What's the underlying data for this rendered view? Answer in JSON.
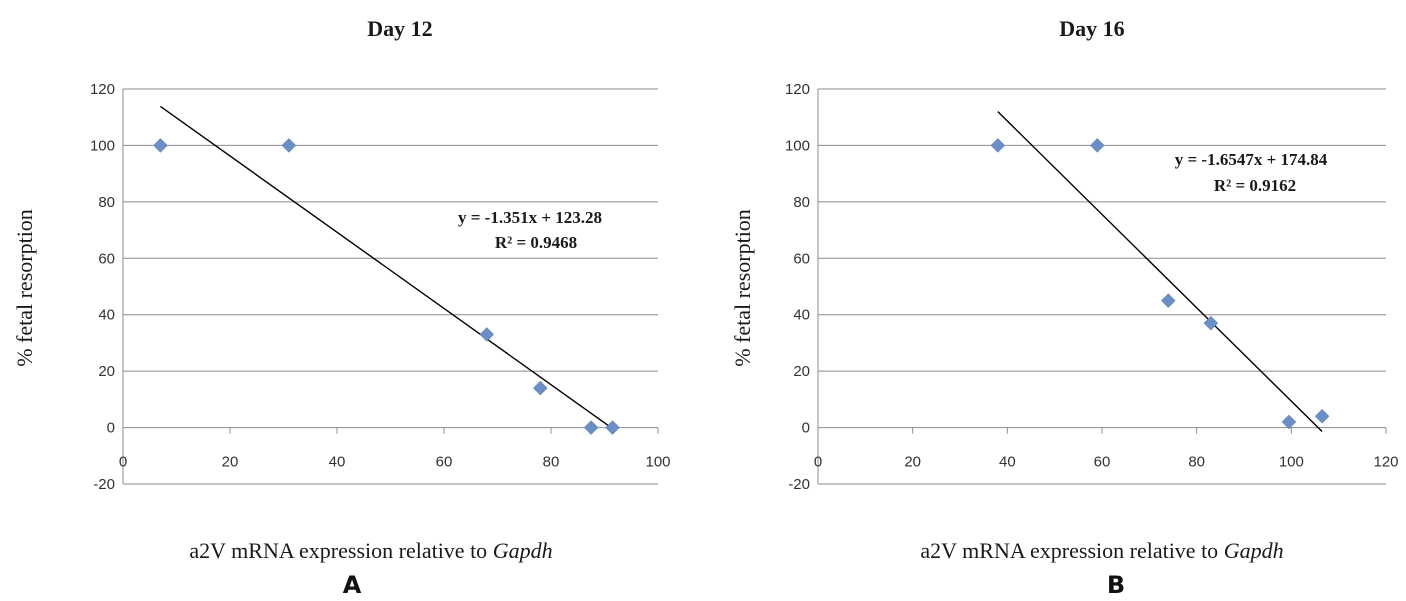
{
  "chart_data": [
    {
      "type": "scatter",
      "title": "Day 12",
      "panel_label": "A",
      "xlabel": "a2V mRNA expression relative to ",
      "xlabel_italic": "Gapdh",
      "ylabel": "% fetal resorption",
      "xlim": [
        0,
        100
      ],
      "ylim": [
        -20,
        120
      ],
      "xticks": [
        0,
        20,
        40,
        60,
        80,
        100
      ],
      "yticks": [
        -20,
        0,
        20,
        40,
        60,
        80,
        100,
        120
      ],
      "grid": true,
      "marker_color": "#6a8fc7",
      "points": [
        {
          "x": 7,
          "y": 100
        },
        {
          "x": 31,
          "y": 100
        },
        {
          "x": 68,
          "y": 33
        },
        {
          "x": 78,
          "y": 14
        },
        {
          "x": 87.5,
          "y": 0
        },
        {
          "x": 91.5,
          "y": 0
        }
      ],
      "trendline": {
        "slope": -1.351,
        "intercept": 123.28,
        "x_range": [
          7,
          91.5
        ]
      },
      "equation": "y = -1.351x + 123.28",
      "r2": "R² = 0.9468"
    },
    {
      "type": "scatter",
      "title": "Day 16",
      "panel_label": "B",
      "xlabel": "a2V mRNA expression relative to ",
      "xlabel_italic": "Gapdh",
      "ylabel": "% fetal resorption",
      "xlim": [
        0,
        120
      ],
      "ylim": [
        -20,
        120
      ],
      "xticks": [
        0,
        20,
        40,
        60,
        80,
        100,
        120
      ],
      "yticks": [
        -20,
        0,
        20,
        40,
        60,
        80,
        100,
        120
      ],
      "grid": true,
      "marker_color": "#6a8fc7",
      "points": [
        {
          "x": 38,
          "y": 100
        },
        {
          "x": 59,
          "y": 100
        },
        {
          "x": 74,
          "y": 45
        },
        {
          "x": 83,
          "y": 37
        },
        {
          "x": 99.5,
          "y": 2
        },
        {
          "x": 106.5,
          "y": 4
        }
      ],
      "trendline": {
        "slope": -1.6547,
        "intercept": 174.84,
        "x_range": [
          38,
          106.5
        ]
      },
      "equation": "y = -1.6547x + 174.84",
      "r2": "R² = 0.9162"
    }
  ]
}
